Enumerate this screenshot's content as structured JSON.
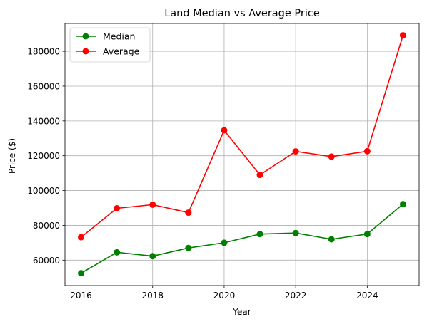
{
  "chart_data": {
    "type": "line",
    "title": "Land Median vs Average Price",
    "xlabel": "Year",
    "ylabel": "Price ($)",
    "x": [
      2016,
      2017,
      2018,
      2019,
      2020,
      2021,
      2022,
      2023,
      2024,
      2025
    ],
    "xlim": [
      2015.55,
      2025.45
    ],
    "xticks": [
      2016,
      2018,
      2020,
      2022,
      2024
    ],
    "ylim": [
      45400,
      196000
    ],
    "yticks": [
      60000,
      80000,
      100000,
      120000,
      140000,
      160000,
      180000
    ],
    "grid": true,
    "legend_position": "top-left",
    "series": [
      {
        "name": "Median",
        "color": "#008000",
        "values": [
          52500,
          64500,
          62300,
          67000,
          70000,
          75000,
          75600,
          72000,
          75000,
          92200
        ]
      },
      {
        "name": "Average",
        "color": "#ff0000",
        "values": [
          73200,
          89800,
          91900,
          87300,
          134600,
          109000,
          122500,
          119500,
          122600,
          189200
        ]
      }
    ]
  }
}
